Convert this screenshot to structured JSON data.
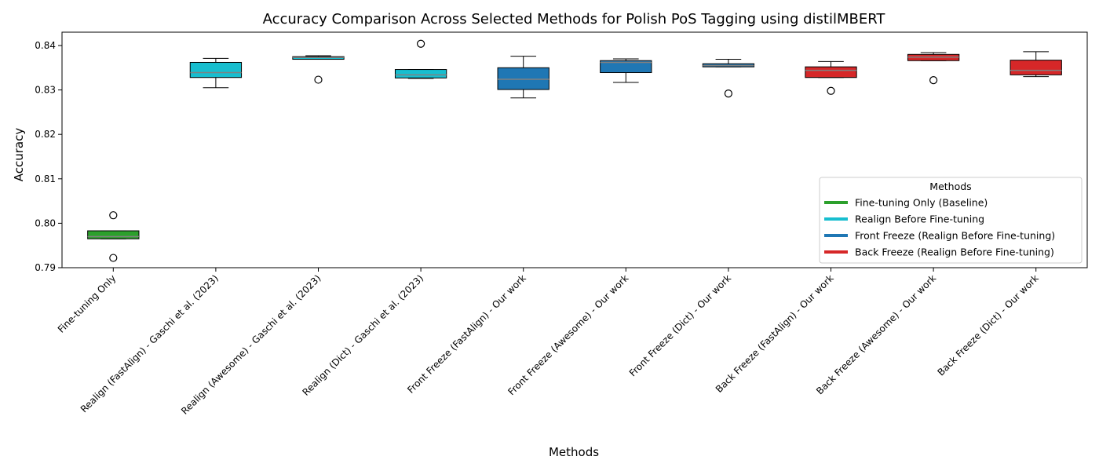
{
  "chart_data": {
    "type": "box",
    "title": "Accuracy Comparison Across Selected Methods for Polish PoS Tagging using distilMBERT",
    "xlabel": "Methods",
    "ylabel": "Accuracy",
    "ylim": [
      0.79,
      0.843
    ],
    "yticks": [
      "0.79",
      "0.80",
      "0.81",
      "0.82",
      "0.83",
      "0.84"
    ],
    "grid": false,
    "legend": {
      "title": "Methods",
      "placement": "lower-right",
      "entries": [
        {
          "label": "Fine-tuning Only (Baseline)",
          "color": "#2ca02c"
        },
        {
          "label": "Realign Before Fine-tuning",
          "color": "#17becf"
        },
        {
          "label": "Front Freeze (Realign Before Fine-tuning)",
          "color": "#1f77b4"
        },
        {
          "label": "Back Freeze (Realign Before Fine-tuning)",
          "color": "#d62728"
        }
      ]
    },
    "median_color": "#808080",
    "categories": [
      "Fine-tuning Only",
      "Realign (FastAlign) - Gaschi et al. (2023)",
      "Realign (Awesome) - Gaschi et al. (2023)",
      "Realign (Dict) - Gaschi et al. (2023)",
      "Front Freeze (FastAlign) - Our work",
      "Front Freeze (Awesome) - Our work",
      "Front Freeze (Dict) - Our work",
      "Back Freeze (FastAlign) - Our work",
      "Back Freeze (Awesome) - Our work",
      "Back Freeze (Dict) - Our work"
    ],
    "boxes": [
      {
        "group": 0,
        "whislo": 0.7965,
        "q1": 0.7965,
        "med": 0.797,
        "q3": 0.7983,
        "whishi": 0.7983,
        "fliers": [
          0.8018,
          0.7922
        ]
      },
      {
        "group": 1,
        "whislo": 0.8305,
        "q1": 0.8328,
        "med": 0.8339,
        "q3": 0.8362,
        "whishi": 0.8371,
        "fliers": []
      },
      {
        "group": 1,
        "whislo": 0.8369,
        "q1": 0.8369,
        "med": 0.8373,
        "q3": 0.8375,
        "whishi": 0.8377,
        "fliers": [
          0.8323
        ]
      },
      {
        "group": 1,
        "whislo": 0.8326,
        "q1": 0.8327,
        "med": 0.8334,
        "q3": 0.8346,
        "whishi": 0.8346,
        "fliers": [
          0.8404
        ]
      },
      {
        "group": 2,
        "whislo": 0.8282,
        "q1": 0.8301,
        "med": 0.8324,
        "q3": 0.835,
        "whishi": 0.8376,
        "fliers": []
      },
      {
        "group": 2,
        "whislo": 0.8317,
        "q1": 0.8339,
        "med": 0.8362,
        "q3": 0.8366,
        "whishi": 0.837,
        "fliers": []
      },
      {
        "group": 2,
        "whislo": 0.8352,
        "q1": 0.8352,
        "med": 0.8355,
        "q3": 0.8359,
        "whishi": 0.8369,
        "fliers": [
          0.8292
        ]
      },
      {
        "group": 3,
        "whislo": 0.8328,
        "q1": 0.8328,
        "med": 0.8344,
        "q3": 0.8352,
        "whishi": 0.8364,
        "fliers": [
          0.8298
        ]
      },
      {
        "group": 3,
        "whislo": 0.8366,
        "q1": 0.8366,
        "med": 0.8374,
        "q3": 0.838,
        "whishi": 0.8384,
        "fliers": [
          0.8322
        ]
      },
      {
        "group": 3,
        "whislo": 0.833,
        "q1": 0.8334,
        "med": 0.8344,
        "q3": 0.8367,
        "whishi": 0.8386,
        "fliers": []
      }
    ]
  }
}
